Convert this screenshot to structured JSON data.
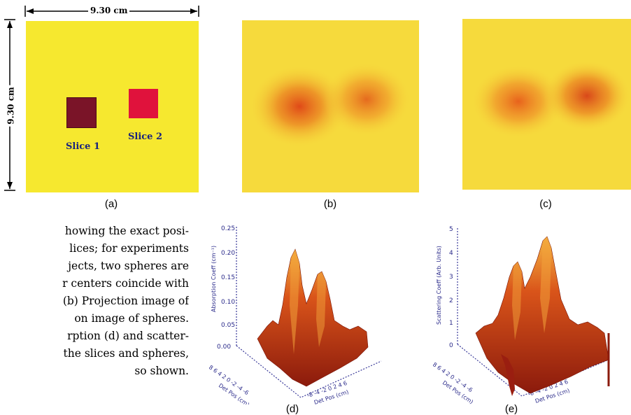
{
  "panel_a": {
    "width_label": "9.30 cm",
    "height_label": "9.30 cm",
    "slice1_label": "Slice 1",
    "slice2_label": "Slice 2"
  },
  "panel_labels": [
    "(a)",
    "(b)",
    "(c)",
    "(d)",
    "(e)"
  ],
  "caption_lines": [
    "howing the exact posi-",
    "lices; for experiments",
    "jects, two spheres are",
    "r centers coincide with",
    "(b) Projection image of",
    "on image of spheres.",
    "rption (d) and scatter-",
    "the slices and spheres,",
    "so shown."
  ],
  "plot_d": {
    "ylabel": "Absorption Coeff (cm⁻¹)",
    "yticks": [
      "0.25",
      "0.20",
      "0.15",
      "0.10",
      "0.05",
      "0.00"
    ],
    "xlabel": "Det Pos (cm)",
    "xticks": [
      "-8",
      "-4",
      "-2",
      "0",
      "2",
      "4",
      "6"
    ],
    "zlabel": "Det Pos (cm)",
    "zticks": [
      "8",
      "6",
      "4",
      "2",
      "0",
      "-2",
      "-4",
      "-6"
    ]
  },
  "plot_e": {
    "ylabel": "Scattering Coeff (Arb. Units)",
    "yticks": [
      "5",
      "4",
      "3",
      "2",
      "1",
      "0"
    ],
    "xlabel": "Det Pos (cm)",
    "xticks": [
      "-8",
      "-4",
      "-2",
      "0",
      "2",
      "4",
      "6"
    ],
    "zlabel": "Det Pos (cm)",
    "zticks": [
      "8",
      "6",
      "4",
      "2",
      "0",
      "-2",
      "-4",
      "-6"
    ]
  },
  "colors": {
    "yellow": "#f6e82f",
    "slice1": "#7a1428",
    "slice2": "#e0123c",
    "surface_dark": "#8b1a0c",
    "surface_mid": "#d9541a",
    "surface_light": "#f5b642"
  }
}
